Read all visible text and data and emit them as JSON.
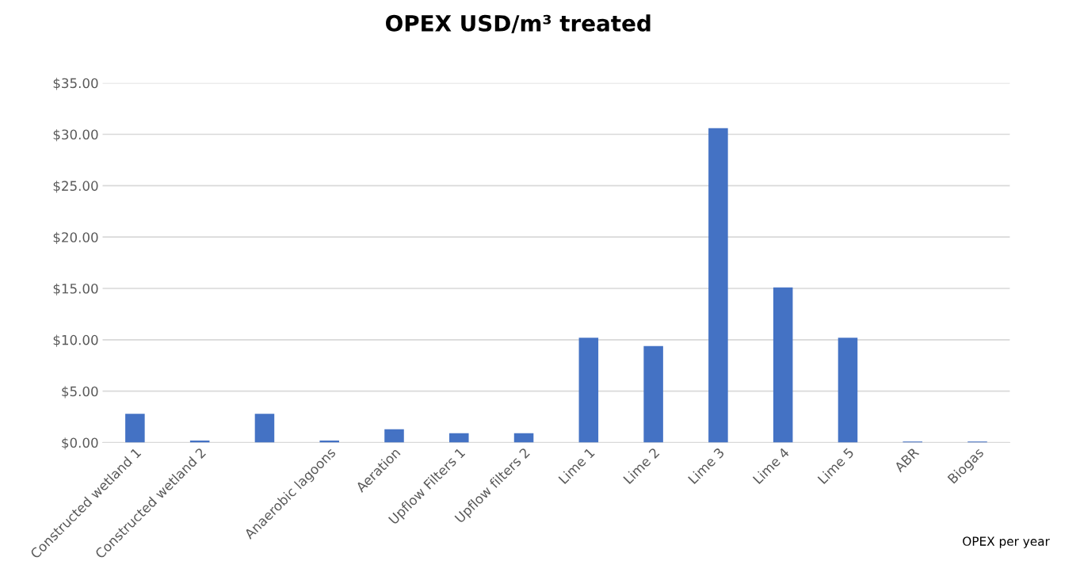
{
  "chart_data": {
    "type": "bar",
    "title": "OPEX USD/m³ treated",
    "categories": [
      "Constructed wetland 1",
      "Constructed wetland 2",
      null,
      "Anaerobic lagoons",
      "Aeration",
      "Upflow Filters 1",
      "Upflow filters 2",
      "Lime 1",
      "Lime 2",
      "Lime 3",
      "Lime 4",
      "Lime 5",
      "ABR",
      "Biogas"
    ],
    "values": [
      2.8,
      0.2,
      2.8,
      0.2,
      1.3,
      0.9,
      0.9,
      10.2,
      9.4,
      30.6,
      15.1,
      10.2,
      0.1,
      0.1
    ],
    "color": "#4472c4",
    "ylim": [
      0,
      35
    ],
    "yticks": [
      {
        "value": 0,
        "label": "$0.00"
      },
      {
        "value": 5,
        "label": "$5.00"
      },
      {
        "value": 10,
        "label": "$10.00"
      },
      {
        "value": 15,
        "label": "$15.00"
      },
      {
        "value": 20,
        "label": "$20.00"
      },
      {
        "value": 25,
        "label": "$25.00"
      },
      {
        "value": 30,
        "label": "$30.00"
      },
      {
        "value": 35,
        "label": "$35.00"
      }
    ],
    "grid": "y",
    "annotations": [
      "OPEX per year"
    ]
  }
}
